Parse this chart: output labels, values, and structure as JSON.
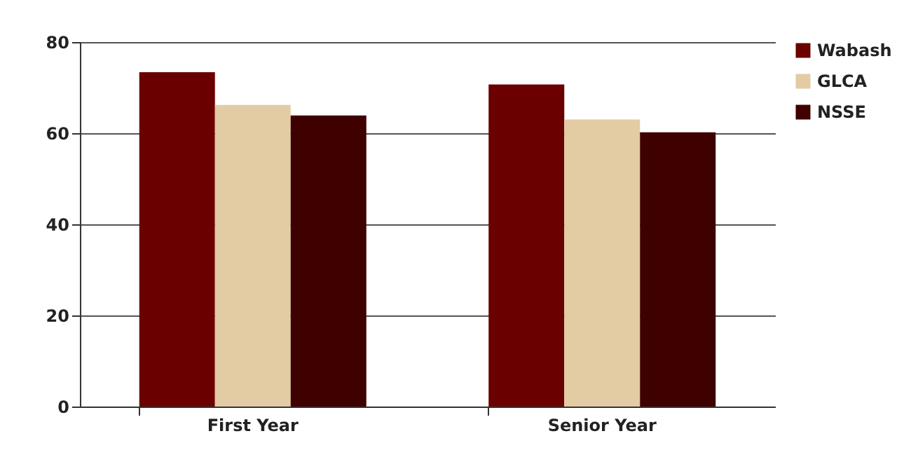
{
  "chart_data": {
    "type": "bar",
    "categories": [
      "First Year",
      "Senior Year"
    ],
    "series": [
      {
        "name": "Wabash",
        "color": "#6b0000",
        "values": [
          73.4,
          70.7
        ]
      },
      {
        "name": "GLCA",
        "color": "#e3cba4",
        "values": [
          66.2,
          63.0
        ]
      },
      {
        "name": "NSSE",
        "color": "#3f0000",
        "values": [
          63.9,
          60.2
        ]
      }
    ],
    "ylim": [
      0,
      80
    ],
    "yticks": [
      0,
      20,
      40,
      60,
      80
    ],
    "grid": "y",
    "legend": "right"
  }
}
